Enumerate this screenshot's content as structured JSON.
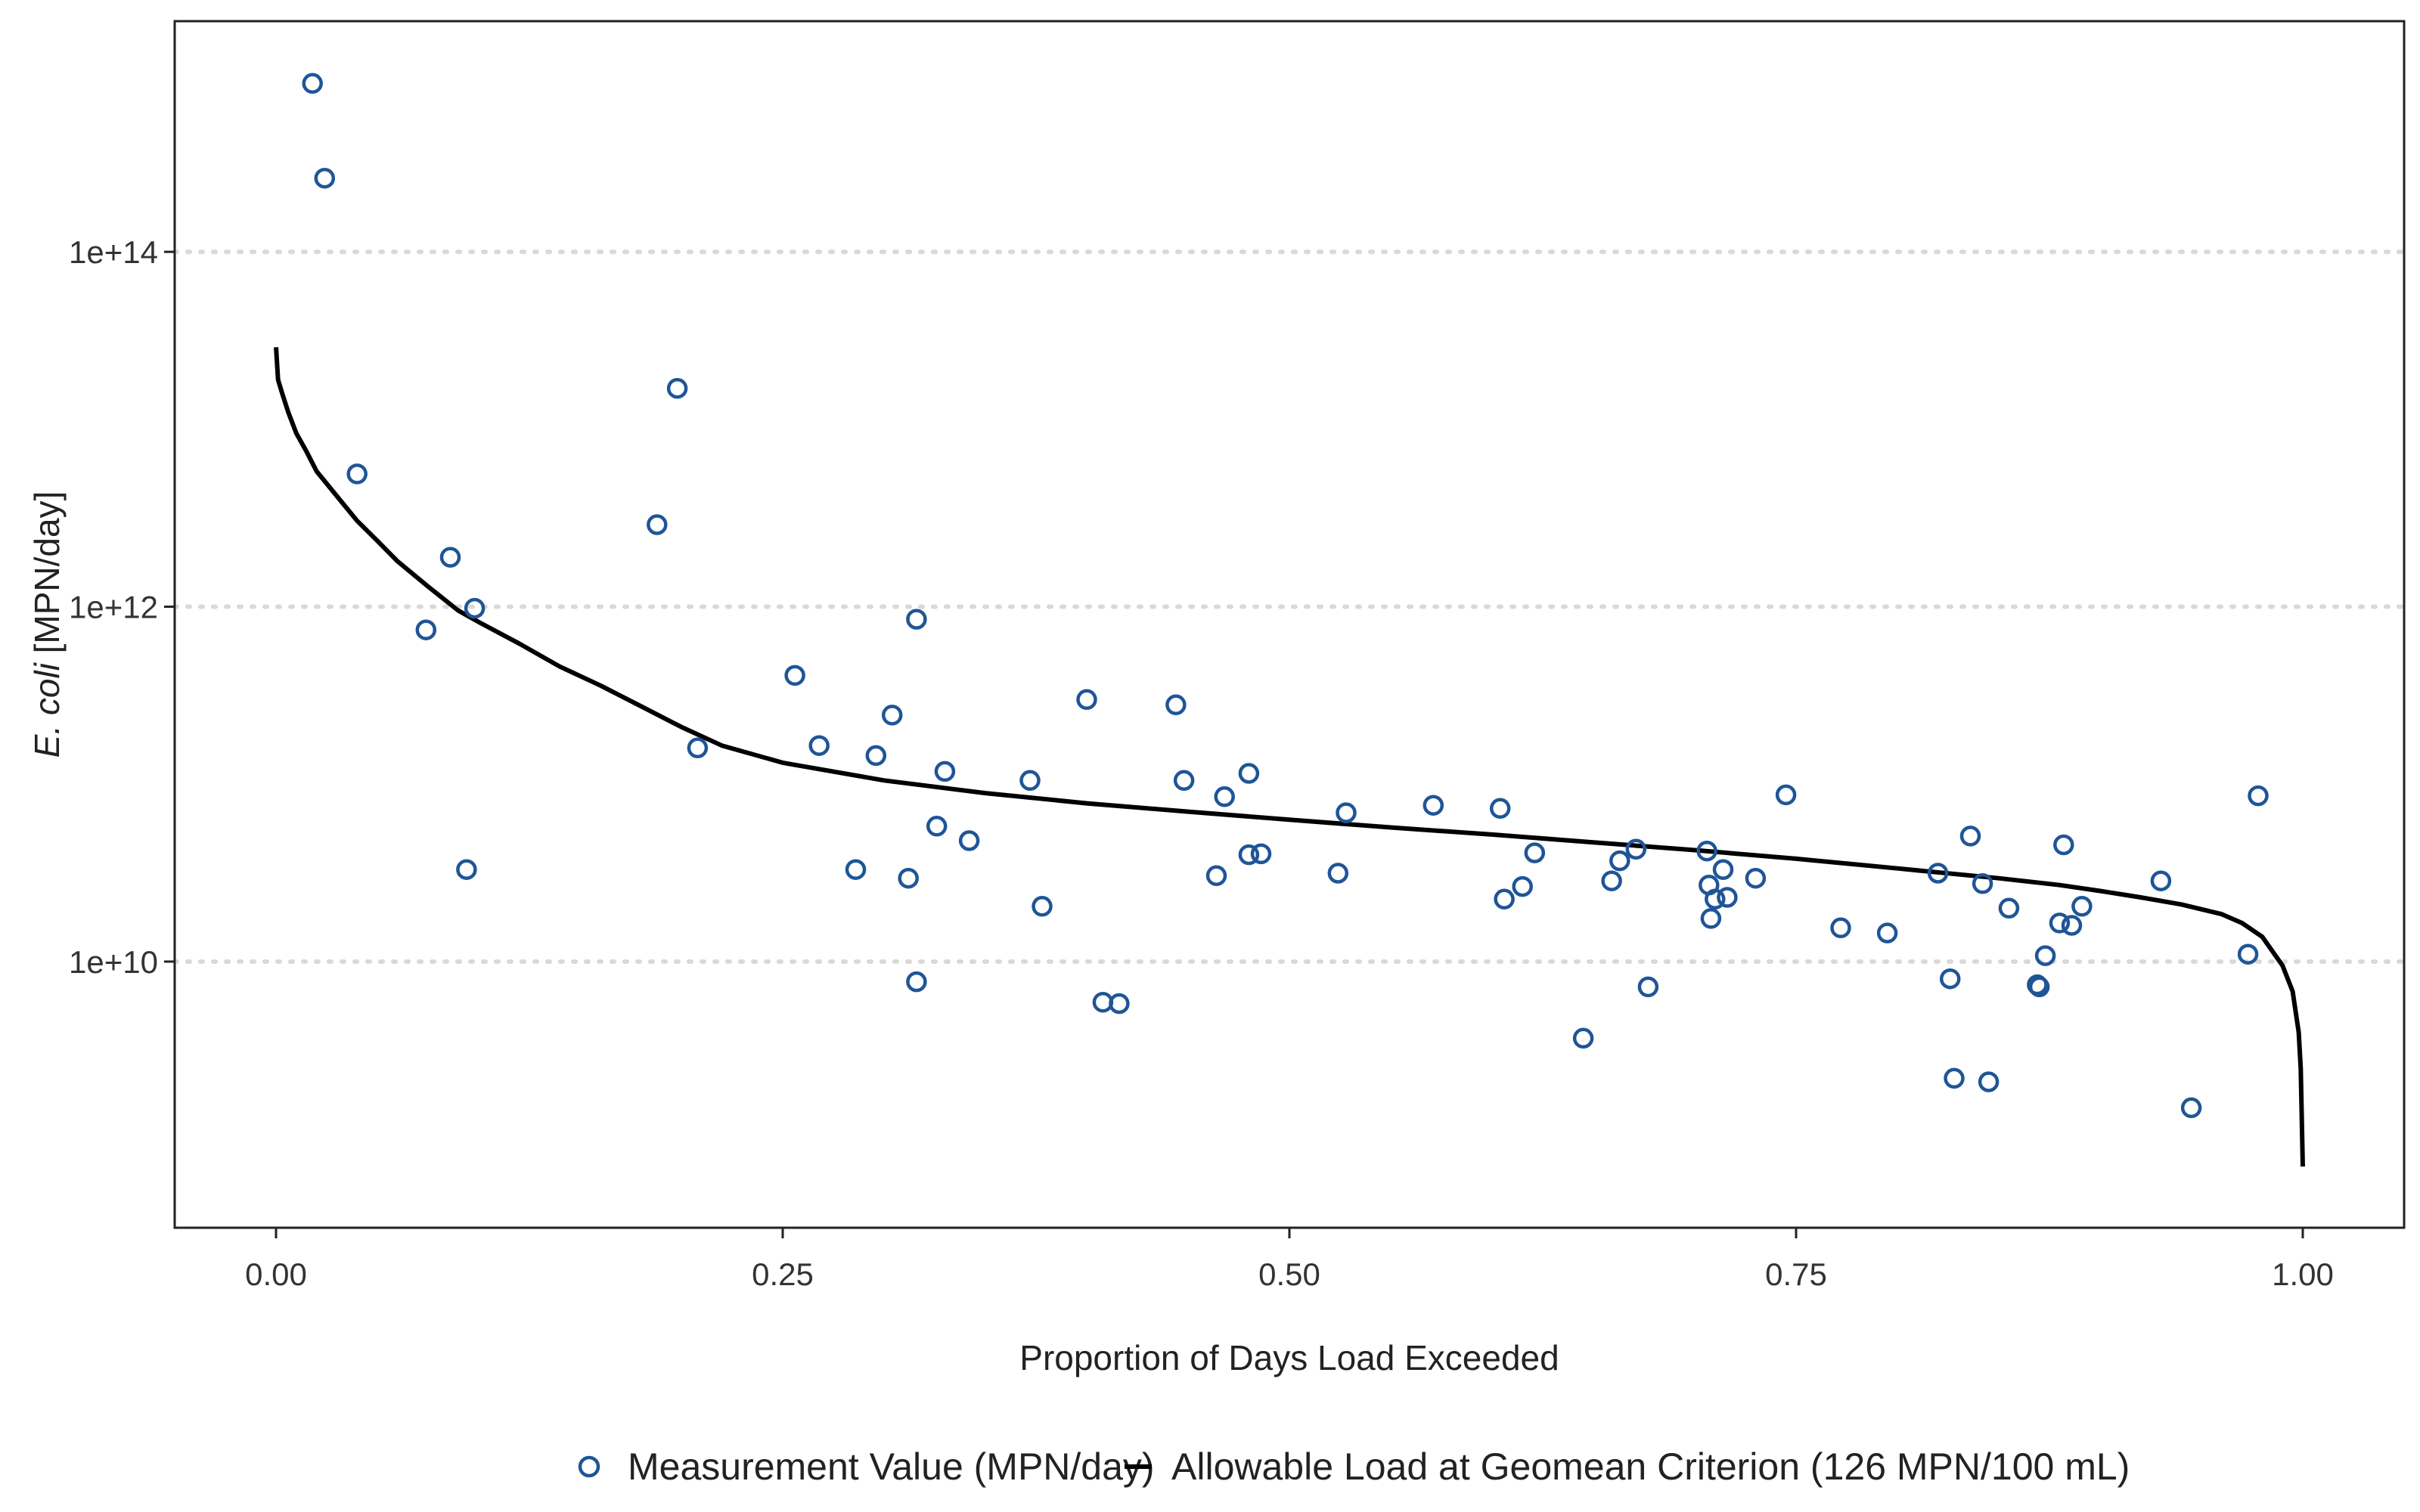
{
  "chart_data": {
    "type": "scatter",
    "xlabel": "Proportion of Days Load Exceeded",
    "ylabel_italic": "E. coli",
    "ylabel_rest": " [MPN/day]",
    "x_scale": "linear",
    "y_scale": "log10",
    "xlim": [
      -0.05,
      1.05
    ],
    "ylim_log10": [
      8.5,
      15.3
    ],
    "x_ticks": [
      0,
      0.25,
      0.5,
      0.75,
      1
    ],
    "x_tick_labels": [
      "0.00",
      "0.25",
      "0.50",
      "0.75",
      "1.00"
    ],
    "y_ticks_log10": [
      10,
      12,
      14
    ],
    "y_tick_labels": [
      "1e+10",
      "1e+12",
      "1e+14"
    ],
    "grid": "horizontal dotted at major y ticks",
    "legend_position": "bottom",
    "colors": {
      "points": "#1f5597",
      "line": "#000000"
    },
    "series": [
      {
        "name": "Measurement Value (MPN/day)",
        "kind": "points",
        "points": [
          [
            0.018,
            890000000000000.0
          ],
          [
            0.024,
            260000000000000.0
          ],
          [
            0.04,
            5600000000000.0
          ],
          [
            0.074,
            740000000000.0
          ],
          [
            0.086,
            1900000000000.0
          ],
          [
            0.094,
            33000000000.0
          ],
          [
            0.098,
            980000000000.0
          ],
          [
            0.188,
            2900000000000.0
          ],
          [
            0.198,
            17000000000000.0
          ],
          [
            0.208,
            160000000000.0
          ],
          [
            0.256,
            410000000000.0
          ],
          [
            0.268,
            165000000000.0
          ],
          [
            0.286,
            33000000000.0
          ],
          [
            0.296,
            145000000000.0
          ],
          [
            0.304,
            245000000000.0
          ],
          [
            0.312,
            29500000000.0
          ],
          [
            0.316,
            850000000000.0
          ],
          [
            0.316,
            7700000000.0
          ],
          [
            0.326,
            58000000000.0
          ],
          [
            0.33,
            118000000000.0
          ],
          [
            0.342,
            48000000000.0
          ],
          [
            0.372,
            105000000000.0
          ],
          [
            0.378,
            20500000000.0
          ],
          [
            0.4,
            300000000000.0
          ],
          [
            0.408,
            5900000000.0
          ],
          [
            0.416,
            5800000000.0
          ],
          [
            0.444,
            280000000000.0
          ],
          [
            0.448,
            105000000000.0
          ],
          [
            0.464,
            30500000000.0
          ],
          [
            0.468,
            85000000000.0
          ],
          [
            0.48,
            115000000000.0
          ],
          [
            0.48,
            40000000000.0
          ],
          [
            0.486,
            40500000000.0
          ],
          [
            0.524,
            31500000000.0
          ],
          [
            0.528,
            69000000000.0
          ],
          [
            0.571,
            76000000000.0
          ],
          [
            0.604,
            73000000000.0
          ],
          [
            0.606,
            22500000000.0
          ],
          [
            0.615,
            26500000000.0
          ],
          [
            0.621,
            41000000000.0
          ],
          [
            0.645,
            3700000000.0
          ],
          [
            0.659,
            28500000000.0
          ],
          [
            0.663,
            37000000000.0
          ],
          [
            0.671,
            43000000000.0
          ],
          [
            0.677,
            7200000000.0
          ],
          [
            0.706,
            42000000000.0
          ],
          [
            0.707,
            27000000000.0
          ],
          [
            0.708,
            17500000000.0
          ],
          [
            0.71,
            22500000000.0
          ],
          [
            0.714,
            33000000000.0
          ],
          [
            0.716,
            23000000000.0
          ],
          [
            0.73,
            29500000000.0
          ],
          [
            0.745,
            87000000000.0
          ],
          [
            0.772,
            15500000000.0
          ],
          [
            0.795,
            14500000000.0
          ],
          [
            0.82,
            31500000000.0
          ],
          [
            0.826,
            8000000000.0
          ],
          [
            0.828,
            2200000000.0
          ],
          [
            0.836,
            51000000000.0
          ],
          [
            0.842,
            27500000000.0
          ],
          [
            0.845,
            2100000000.0
          ],
          [
            0.855,
            20000000000.0
          ],
          [
            0.869,
            7400000000.0
          ],
          [
            0.87,
            7200000000.0
          ],
          [
            0.873,
            10800000000.0
          ],
          [
            0.88,
            16500000000.0
          ],
          [
            0.882,
            45500000000.0
          ],
          [
            0.886,
            16000000000.0
          ],
          [
            0.891,
            20500000000.0
          ],
          [
            0.93,
            28500000000.0
          ],
          [
            0.945,
            1500000000.0
          ],
          [
            0.973,
            11000000000.0
          ],
          [
            0.978,
            86000000000.0
          ]
        ]
      },
      {
        "name": "Allowable Load at Geomean Criterion (126 MPN/100 mL)",
        "kind": "line",
        "points": [
          [
            0.0,
            29000000000000.0
          ],
          [
            0.001,
            19000000000000.0
          ],
          [
            0.003,
            16000000000000.0
          ],
          [
            0.006,
            12500000000000.0
          ],
          [
            0.01,
            9500000000000.0
          ],
          [
            0.015,
            7500000000000.0
          ],
          [
            0.02,
            5800000000000.0
          ],
          [
            0.03,
            4200000000000.0
          ],
          [
            0.04,
            3050000000000.0
          ],
          [
            0.05,
            2350000000000.0
          ],
          [
            0.06,
            1800000000000.0
          ],
          [
            0.075,
            1300000000000.0
          ],
          [
            0.09,
            950000000000.0
          ],
          [
            0.1,
            820000000000.0
          ],
          [
            0.12,
            620000000000.0
          ],
          [
            0.14,
            460000000000.0
          ],
          [
            0.16,
            360000000000.0
          ],
          [
            0.18,
            275000000000.0
          ],
          [
            0.2,
            210000000000.0
          ],
          [
            0.22,
            165000000000.0
          ],
          [
            0.25,
            132000000000.0
          ],
          [
            0.3,
            105000000000.0
          ],
          [
            0.35,
            89000000000.0
          ],
          [
            0.4,
            78000000000.0
          ],
          [
            0.45,
            70000000000.0
          ],
          [
            0.5,
            63000000000.0
          ],
          [
            0.55,
            57000000000.0
          ],
          [
            0.6,
            52000000000.0
          ],
          [
            0.65,
            47000000000.0
          ],
          [
            0.7,
            42500000000.0
          ],
          [
            0.75,
            38000000000.0
          ],
          [
            0.8,
            33500000000.0
          ],
          [
            0.85,
            29500000000.0
          ],
          [
            0.88,
            27000000000.0
          ],
          [
            0.9,
            25000000000.0
          ],
          [
            0.92,
            23000000000.0
          ],
          [
            0.94,
            21000000000.0
          ],
          [
            0.96,
            18500000000.0
          ],
          [
            0.97,
            16500000000.0
          ],
          [
            0.98,
            13800000000.0
          ],
          [
            0.99,
            9500000000.0
          ],
          [
            0.995,
            6800000000.0
          ],
          [
            0.998,
            4000000000.0
          ],
          [
            0.999,
            2500000000.0
          ],
          [
            1.0,
            700000000.0
          ]
        ]
      }
    ]
  }
}
